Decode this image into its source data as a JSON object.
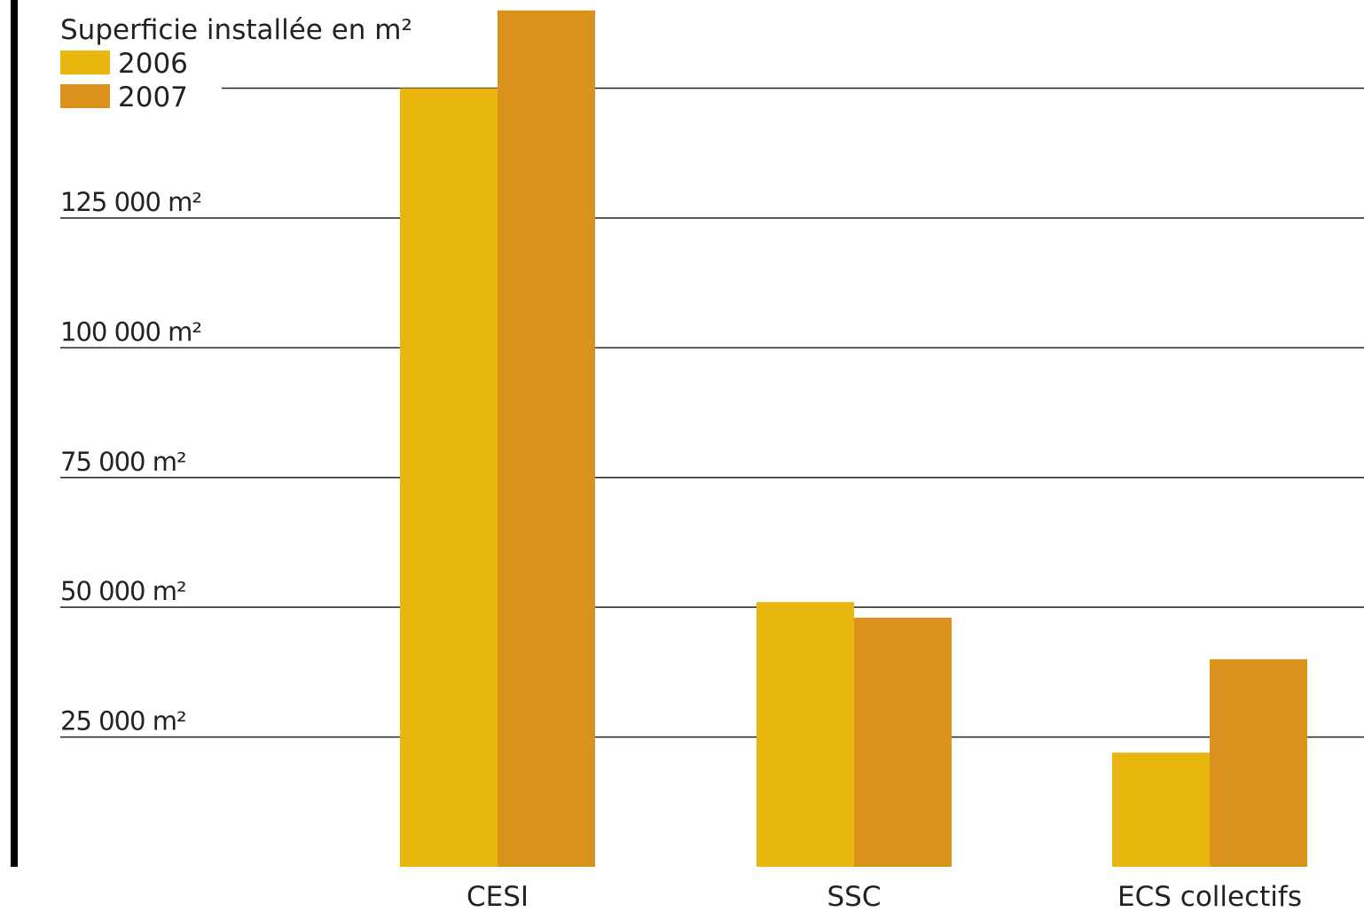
{
  "chart_data": {
    "type": "bar",
    "title": "Superficie installée en m²",
    "categories": [
      "CESI",
      "SSC",
      "ECS collectifs"
    ],
    "series": [
      {
        "name": "2006",
        "color": "#E8B60F",
        "values": [
          150000,
          51000,
          22000
        ]
      },
      {
        "name": "2007",
        "color": "#DB921C",
        "values": [
          165000,
          48000,
          40000
        ]
      }
    ],
    "yticks": [
      {
        "value": 25000,
        "label": "25 000 m²"
      },
      {
        "value": 50000,
        "label": "50 000 m²"
      },
      {
        "value": 75000,
        "label": "75 000 m²"
      },
      {
        "value": 100000,
        "label": "100 000 m²"
      },
      {
        "value": 125000,
        "label": "125 000 m²"
      }
    ],
    "gridlines": [
      25000,
      50000,
      75000,
      100000,
      125000,
      150000
    ],
    "ylim": [
      0,
      167000
    ],
    "grid": true,
    "legend_position": "top-left"
  }
}
